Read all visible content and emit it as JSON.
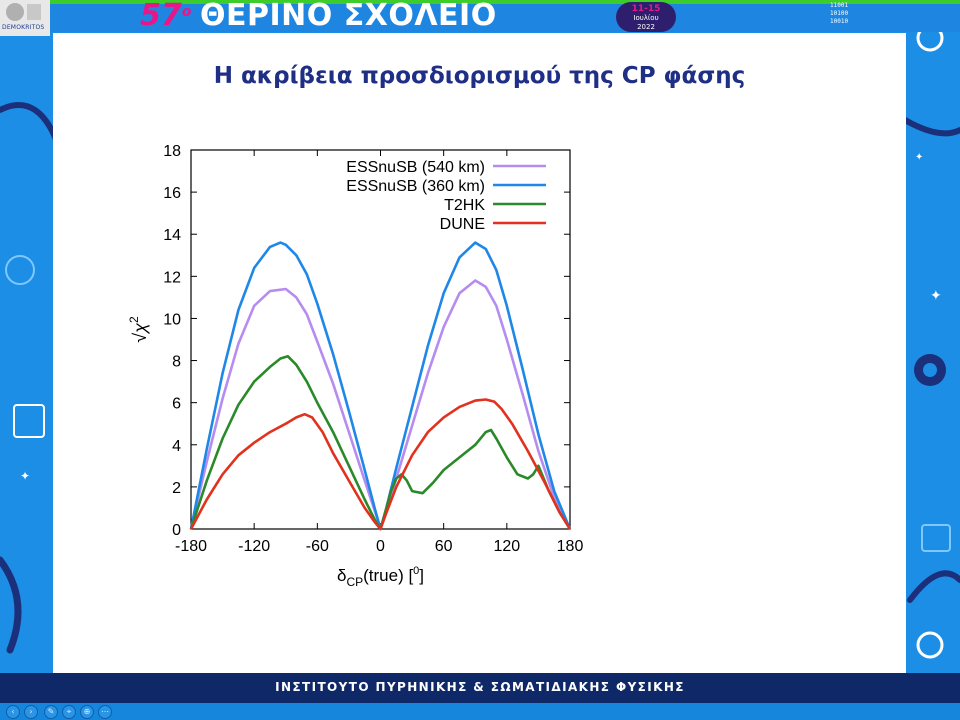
{
  "header": {
    "banner_number": "57",
    "banner_superscript": "o",
    "banner_title": "ΘΕΡΙΝΟ ΣΧΟΛΕΙΟ",
    "date_range": "11-15",
    "date_month": "Ιουλίου",
    "date_year": "2022",
    "logo_text": "DEMOKRITOS",
    "binary_lines": [
      "11001",
      "10100",
      "10010"
    ]
  },
  "slide": {
    "title": "Η ακρίβεια προσδιορισμού της CP φάσης"
  },
  "footer": {
    "text": "ΙΝΣΤΙΤΟΥΤΟ ΠΥΡΗΝΙΚΗΣ & ΣΩΜΑΤΙΔΙΑΚΗΣ ΦΥΣΙΚΗΣ"
  },
  "colors": {
    "background": "#1d8ee6",
    "title": "#1f2f86",
    "footer": "#0f2868",
    "banner_accent": "#e9168a",
    "green_accent": "#3ccd2a"
  },
  "taskbar": {
    "icons": [
      "prev-icon",
      "next-icon",
      "pen-icon",
      "pointer-icon",
      "zoom-icon",
      "more-icon"
    ]
  },
  "chart_data": {
    "type": "line",
    "title": "",
    "xlabel_main": "δ",
    "xlabel_sub": "CP",
    "xlabel_rest": "(true) [",
    "xlabel_deg": "0",
    "xlabel_end": "]",
    "ylabel_root": "√",
    "ylabel_chi": "χ",
    "ylabel_sup": "2",
    "xlim": [
      -180,
      180
    ],
    "ylim": [
      0,
      18
    ],
    "xticks": [
      "-180",
      "-120",
      "-60",
      "0",
      "60",
      "120",
      "180"
    ],
    "xtick_values": [
      -180,
      -120,
      -60,
      0,
      60,
      120,
      180
    ],
    "yticks": [
      "0",
      "2",
      "4",
      "6",
      "8",
      "10",
      "12",
      "14",
      "16",
      "18"
    ],
    "ytick_values": [
      0,
      2,
      4,
      6,
      8,
      10,
      12,
      14,
      16,
      18
    ],
    "grid": false,
    "legend_position": "top-right",
    "series": [
      {
        "name": "ESSnuSB (540 km)",
        "color": "#b68cf0",
        "x": [
          -180,
          -165,
          -150,
          -135,
          -120,
          -105,
          -90,
          -80,
          -70,
          -60,
          -45,
          -30,
          -15,
          -5,
          0,
          5,
          15,
          30,
          45,
          60,
          75,
          90,
          100,
          110,
          120,
          135,
          150,
          165,
          180
        ],
        "y": [
          0,
          3.2,
          6.2,
          8.8,
          10.6,
          11.3,
          11.4,
          11.0,
          10.2,
          8.9,
          6.9,
          4.6,
          2.3,
          0.8,
          0,
          0.8,
          2.4,
          4.9,
          7.4,
          9.6,
          11.2,
          11.8,
          11.5,
          10.6,
          9.0,
          6.4,
          3.7,
          1.5,
          0
        ]
      },
      {
        "name": "ESSnuSB (360 km)",
        "color": "#1f87e8",
        "x": [
          -180,
          -165,
          -150,
          -135,
          -120,
          -105,
          -95,
          -90,
          -80,
          -70,
          -60,
          -45,
          -30,
          -15,
          -5,
          0,
          5,
          15,
          30,
          45,
          60,
          75,
          90,
          100,
          110,
          120,
          135,
          150,
          165,
          180
        ],
        "y": [
          0,
          3.8,
          7.4,
          10.4,
          12.4,
          13.4,
          13.6,
          13.5,
          13.0,
          12.1,
          10.7,
          8.3,
          5.6,
          2.8,
          0.9,
          0,
          0.9,
          2.9,
          5.8,
          8.7,
          11.2,
          12.9,
          13.6,
          13.3,
          12.3,
          10.6,
          7.6,
          4.5,
          1.8,
          0
        ]
      },
      {
        "name": "T2HK",
        "color": "#2a8a2a",
        "x": [
          -180,
          -165,
          -150,
          -135,
          -120,
          -105,
          -95,
          -88,
          -80,
          -70,
          -60,
          -45,
          -30,
          -15,
          -5,
          0,
          5,
          10,
          15,
          20,
          25,
          30,
          40,
          50,
          60,
          75,
          90,
          100,
          105,
          110,
          120,
          130,
          140,
          145,
          150,
          155,
          160,
          170,
          180
        ],
        "y": [
          0,
          2.3,
          4.3,
          5.9,
          7.0,
          7.7,
          8.1,
          8.2,
          7.8,
          7.0,
          6.0,
          4.6,
          3.0,
          1.4,
          0.4,
          0,
          0.9,
          1.8,
          2.4,
          2.6,
          2.3,
          1.8,
          1.7,
          2.2,
          2.8,
          3.4,
          4.0,
          4.6,
          4.7,
          4.3,
          3.4,
          2.6,
          2.4,
          2.6,
          3.0,
          2.4,
          1.8,
          0.8,
          0
        ]
      },
      {
        "name": "DUNE",
        "color": "#e0321e",
        "x": [
          -180,
          -165,
          -150,
          -135,
          -120,
          -105,
          -90,
          -80,
          -72,
          -65,
          -55,
          -45,
          -30,
          -15,
          -5,
          0,
          5,
          15,
          30,
          45,
          60,
          75,
          90,
          100,
          108,
          115,
          125,
          140,
          155,
          170,
          180
        ],
        "y": [
          0,
          1.4,
          2.6,
          3.5,
          4.1,
          4.6,
          5.0,
          5.3,
          5.45,
          5.3,
          4.6,
          3.6,
          2.3,
          1.0,
          0.3,
          0,
          0.7,
          2.0,
          3.5,
          4.6,
          5.3,
          5.8,
          6.1,
          6.15,
          6.05,
          5.7,
          5.0,
          3.7,
          2.3,
          0.8,
          0
        ]
      }
    ]
  }
}
